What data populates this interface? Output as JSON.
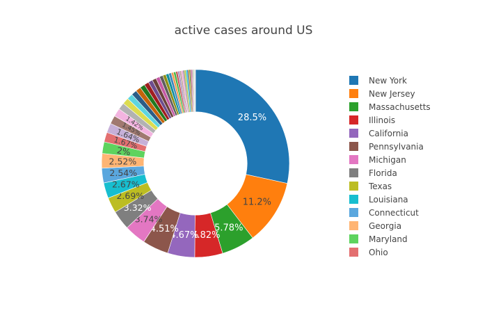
{
  "chart_data": {
    "type": "pie",
    "hole": 0.55,
    "title": "active cases around US",
    "series": [
      {
        "name": "New York",
        "value": 28.5,
        "label": "28.5%",
        "color": "#1f77b4",
        "text_color": "#ffffff"
      },
      {
        "name": "New Jersey",
        "value": 11.2,
        "label": "11.2%",
        "color": "#ff7f0e",
        "text_color": "#444444"
      },
      {
        "name": "Massachusetts",
        "value": 5.78,
        "label": "5.78%",
        "color": "#2ca02c",
        "text_color": "#ffffff"
      },
      {
        "name": "Illinois",
        "value": 4.82,
        "label": "4.82%",
        "color": "#d62728",
        "text_color": "#ffffff"
      },
      {
        "name": "California",
        "value": 4.67,
        "label": "4.67%",
        "color": "#9467bd",
        "text_color": "#ffffff"
      },
      {
        "name": "Pennsylvania",
        "value": 4.51,
        "label": "4.51%",
        "color": "#8c564b",
        "text_color": "#ffffff"
      },
      {
        "name": "Michigan",
        "value": 3.74,
        "label": "3.74%",
        "color": "#e377c2",
        "text_color": "#444444"
      },
      {
        "name": "Florida",
        "value": 3.32,
        "label": "3.32%",
        "color": "#7f7f7f",
        "text_color": "#ffffff"
      },
      {
        "name": "Texas",
        "value": 2.69,
        "label": "2.69%",
        "color": "#bcbd22",
        "text_color": "#444444"
      },
      {
        "name": "Louisiana",
        "value": 2.67,
        "label": "2.67%",
        "color": "#17becf",
        "text_color": "#444444"
      },
      {
        "name": "Connecticut",
        "value": 2.54,
        "label": "2.54%",
        "color": "#5aa7de",
        "text_color": "#444444"
      },
      {
        "name": "Georgia",
        "value": 2.52,
        "label": "2.52%",
        "color": "#ffb574",
        "text_color": "#444444"
      },
      {
        "name": "Maryland",
        "value": 2.0,
        "label": "2%",
        "color": "#5ed35e",
        "text_color": "#444444"
      },
      {
        "name": "Ohio",
        "value": 1.67,
        "label": "1.67%",
        "color": "#e36f70",
        "text_color": "#444444"
      },
      {
        "name": "",
        "value": 1.64,
        "label": "1.64%",
        "color": "#c6b0d8",
        "text_color": "#444444"
      },
      {
        "name": "",
        "value": 1.45,
        "label": "1.45%",
        "color": "#a07970",
        "text_color": "#444444"
      },
      {
        "name": "",
        "value": 1.42,
        "label": "1.42%",
        "color": "#f3b4e0",
        "text_color": "#444444"
      },
      {
        "name": "",
        "value": 1.2,
        "label": "",
        "color": "#b2b2b2",
        "text_color": "#444444"
      },
      {
        "name": "",
        "value": 1.1,
        "label": "",
        "color": "#dcdc50",
        "text_color": "#444444"
      },
      {
        "name": "",
        "value": 1.0,
        "label": "",
        "color": "#5dd5e0",
        "text_color": "#444444"
      },
      {
        "name": "",
        "value": 0.95,
        "label": "",
        "color": "#2b5d87",
        "text_color": "#444444"
      },
      {
        "name": "",
        "value": 0.9,
        "label": "",
        "color": "#c5640b",
        "text_color": "#444444"
      },
      {
        "name": "",
        "value": 0.85,
        "label": "",
        "color": "#207a20",
        "text_color": "#444444"
      },
      {
        "name": "",
        "value": 0.8,
        "label": "",
        "color": "#a01e1f",
        "text_color": "#444444"
      },
      {
        "name": "",
        "value": 0.75,
        "label": "",
        "color": "#6e4d8e",
        "text_color": "#444444"
      },
      {
        "name": "",
        "value": 0.7,
        "label": "",
        "color": "#6b4139",
        "text_color": "#444444"
      },
      {
        "name": "",
        "value": 0.65,
        "label": "",
        "color": "#c55aa5",
        "text_color": "#444444"
      },
      {
        "name": "",
        "value": 0.6,
        "label": "",
        "color": "#5e5e5e",
        "text_color": "#444444"
      },
      {
        "name": "",
        "value": 0.55,
        "label": "",
        "color": "#8e8f17",
        "text_color": "#444444"
      },
      {
        "name": "",
        "value": 0.5,
        "label": "",
        "color": "#118f9c",
        "text_color": "#444444"
      },
      {
        "name": "",
        "value": 0.45,
        "label": "",
        "color": "#3e86bc",
        "text_color": "#444444"
      },
      {
        "name": "",
        "value": 0.4,
        "label": "",
        "color": "#f29a50",
        "text_color": "#444444"
      },
      {
        "name": "",
        "value": 0.38,
        "label": "",
        "color": "#45b845",
        "text_color": "#444444"
      },
      {
        "name": "",
        "value": 0.35,
        "label": "",
        "color": "#c25253",
        "text_color": "#444444"
      },
      {
        "name": "",
        "value": 0.32,
        "label": "",
        "color": "#a48dbd",
        "text_color": "#444444"
      },
      {
        "name": "",
        "value": 0.3,
        "label": "",
        "color": "#bd9a93",
        "text_color": "#444444"
      },
      {
        "name": "",
        "value": 0.28,
        "label": "",
        "color": "#eb9fd4",
        "text_color": "#444444"
      },
      {
        "name": "",
        "value": 0.26,
        "label": "",
        "color": "#999999",
        "text_color": "#444444"
      },
      {
        "name": "",
        "value": 0.24,
        "label": "",
        "color": "#c9ca3a",
        "text_color": "#444444"
      },
      {
        "name": "",
        "value": 0.22,
        "label": "",
        "color": "#3ccbd8",
        "text_color": "#444444"
      },
      {
        "name": "",
        "value": 0.2,
        "label": "",
        "color": "#1f77b4",
        "text_color": "#444444"
      },
      {
        "name": "",
        "value": 0.18,
        "label": "",
        "color": "#ff7f0e",
        "text_color": "#444444"
      },
      {
        "name": "",
        "value": 0.16,
        "label": "",
        "color": "#2ca02c",
        "text_color": "#444444"
      },
      {
        "name": "",
        "value": 0.14,
        "label": "",
        "color": "#d62728",
        "text_color": "#444444"
      },
      {
        "name": "",
        "value": 0.12,
        "label": "",
        "color": "#9467bd",
        "text_color": "#444444"
      },
      {
        "name": "",
        "value": 0.1,
        "label": "",
        "color": "#8c564b",
        "text_color": "#444444"
      },
      {
        "name": "",
        "value": 0.09,
        "label": "",
        "color": "#e377c2",
        "text_color": "#444444"
      },
      {
        "name": "",
        "value": 0.08,
        "label": "",
        "color": "#7f7f7f",
        "text_color": "#444444"
      },
      {
        "name": "",
        "value": 0.07,
        "label": "",
        "color": "#bcbd22",
        "text_color": "#444444"
      },
      {
        "name": "",
        "value": 0.06,
        "label": "",
        "color": "#17becf",
        "text_color": "#444444"
      },
      {
        "name": "",
        "value": 0.05,
        "label": "",
        "color": "#5aa7de",
        "text_color": "#444444"
      },
      {
        "name": "",
        "value": 0.05,
        "label": "",
        "color": "#ffb574",
        "text_color": "#444444"
      },
      {
        "name": "",
        "value": 0.04,
        "label": "",
        "color": "#5ed35e",
        "text_color": "#444444"
      },
      {
        "name": "",
        "value": 0.04,
        "label": "",
        "color": "#e36f70",
        "text_color": "#444444"
      },
      {
        "name": "",
        "value": 0.03,
        "label": "",
        "color": "#c6b0d8",
        "text_color": "#444444"
      },
      {
        "name": "",
        "value": 0.03,
        "label": "",
        "color": "#a07970",
        "text_color": "#444444"
      }
    ],
    "legend": {
      "placement": "right",
      "entries": [
        "New York",
        "New Jersey",
        "Massachusetts",
        "Illinois",
        "California",
        "Pennsylvania",
        "Michigan",
        "Florida",
        "Texas",
        "Louisiana",
        "Connecticut",
        "Georgia",
        "Maryland",
        "Ohio"
      ]
    }
  }
}
